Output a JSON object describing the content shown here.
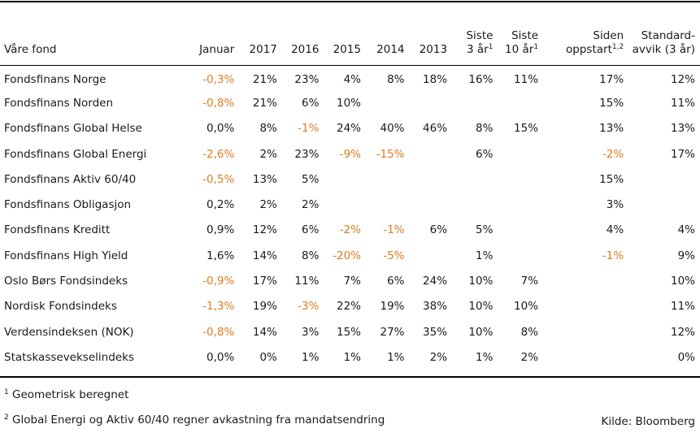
{
  "headers": {
    "name": "Våre fond",
    "jan": "Januar",
    "y2017": "2017",
    "y2016": "2016",
    "y2015": "2015",
    "y2014": "2014",
    "y2013": "2013",
    "siste3_l1": "Siste",
    "siste3_l2": "3 år",
    "siste3_sup": "1",
    "siste10_l1": "Siste",
    "siste10_l2": "10 år",
    "siste10_sup": "1",
    "siden_l1": "Siden",
    "siden_l2": "oppstart",
    "siden_sup": "1,2",
    "std_l1": "Standard-",
    "std_l2": "avvik (3 år)"
  },
  "rows": [
    {
      "name": "Fondsfinans Norge",
      "cells": [
        "-0,3%",
        "21%",
        "23%",
        "4%",
        "8%",
        "18%",
        "16%",
        "11%",
        "17%",
        "12%"
      ]
    },
    {
      "name": "Fondsfinans Norden",
      "cells": [
        "-0,8%",
        "21%",
        "6%",
        "10%",
        "",
        "",
        "",
        "",
        "15%",
        "11%"
      ]
    },
    {
      "name": "Fondsfinans Global Helse",
      "cells": [
        "0,0%",
        "8%",
        "-1%",
        "24%",
        "40%",
        "46%",
        "8%",
        "15%",
        "13%",
        "13%"
      ]
    },
    {
      "name": "Fondsfinans Global Energi",
      "cells": [
        "-2,6%",
        "2%",
        "23%",
        "-9%",
        "-15%",
        "",
        "6%",
        "",
        "-2%",
        "17%"
      ]
    },
    {
      "name": "Fondsfinans Aktiv 60/40",
      "cells": [
        "-0,5%",
        "13%",
        "5%",
        "",
        "",
        "",
        "",
        "",
        "15%",
        ""
      ]
    },
    {
      "name": "Fondsfinans Obligasjon",
      "cells": [
        "0,2%",
        "2%",
        "2%",
        "",
        "",
        "",
        "",
        "",
        "3%",
        ""
      ]
    },
    {
      "name": "Fondsfinans Kreditt",
      "cells": [
        "0,9%",
        "12%",
        "6%",
        "-2%",
        "-1%",
        "6%",
        "5%",
        "",
        "4%",
        "4%"
      ]
    },
    {
      "name": "Fondsfinans High Yield",
      "cells": [
        "1,6%",
        "14%",
        "8%",
        "-20%",
        "-5%",
        "",
        "1%",
        "",
        "-1%",
        "9%"
      ]
    },
    {
      "name": "Oslo Børs Fondsindeks",
      "cells": [
        "-0,9%",
        "17%",
        "11%",
        "7%",
        "6%",
        "24%",
        "10%",
        "7%",
        "",
        "10%"
      ]
    },
    {
      "name": "Nordisk Fondsindeks",
      "cells": [
        "-1,3%",
        "19%",
        "-3%",
        "22%",
        "19%",
        "38%",
        "10%",
        "10%",
        "",
        "11%"
      ]
    },
    {
      "name": "Verdensindeksen (NOK)",
      "cells": [
        "-0,8%",
        "14%",
        "3%",
        "15%",
        "27%",
        "35%",
        "10%",
        "8%",
        "",
        "12%"
      ]
    },
    {
      "name": "Statskassevekselindeks",
      "cells": [
        "0,0%",
        "0%",
        "1%",
        "1%",
        "1%",
        "2%",
        "1%",
        "2%",
        "",
        "0%"
      ]
    }
  ],
  "footnotes": {
    "fn1_mark": "1",
    "fn1_text": "Geometrisk beregnet",
    "fn2_mark": "2",
    "fn2_text": "Global Energi og Aktiv 60/40 regner avkastning fra mandatsendring"
  },
  "source": "Kilde: Bloomberg",
  "colors": {
    "negative": "#e07b1f",
    "text": "#1a1a1a",
    "rule": "#000000"
  }
}
